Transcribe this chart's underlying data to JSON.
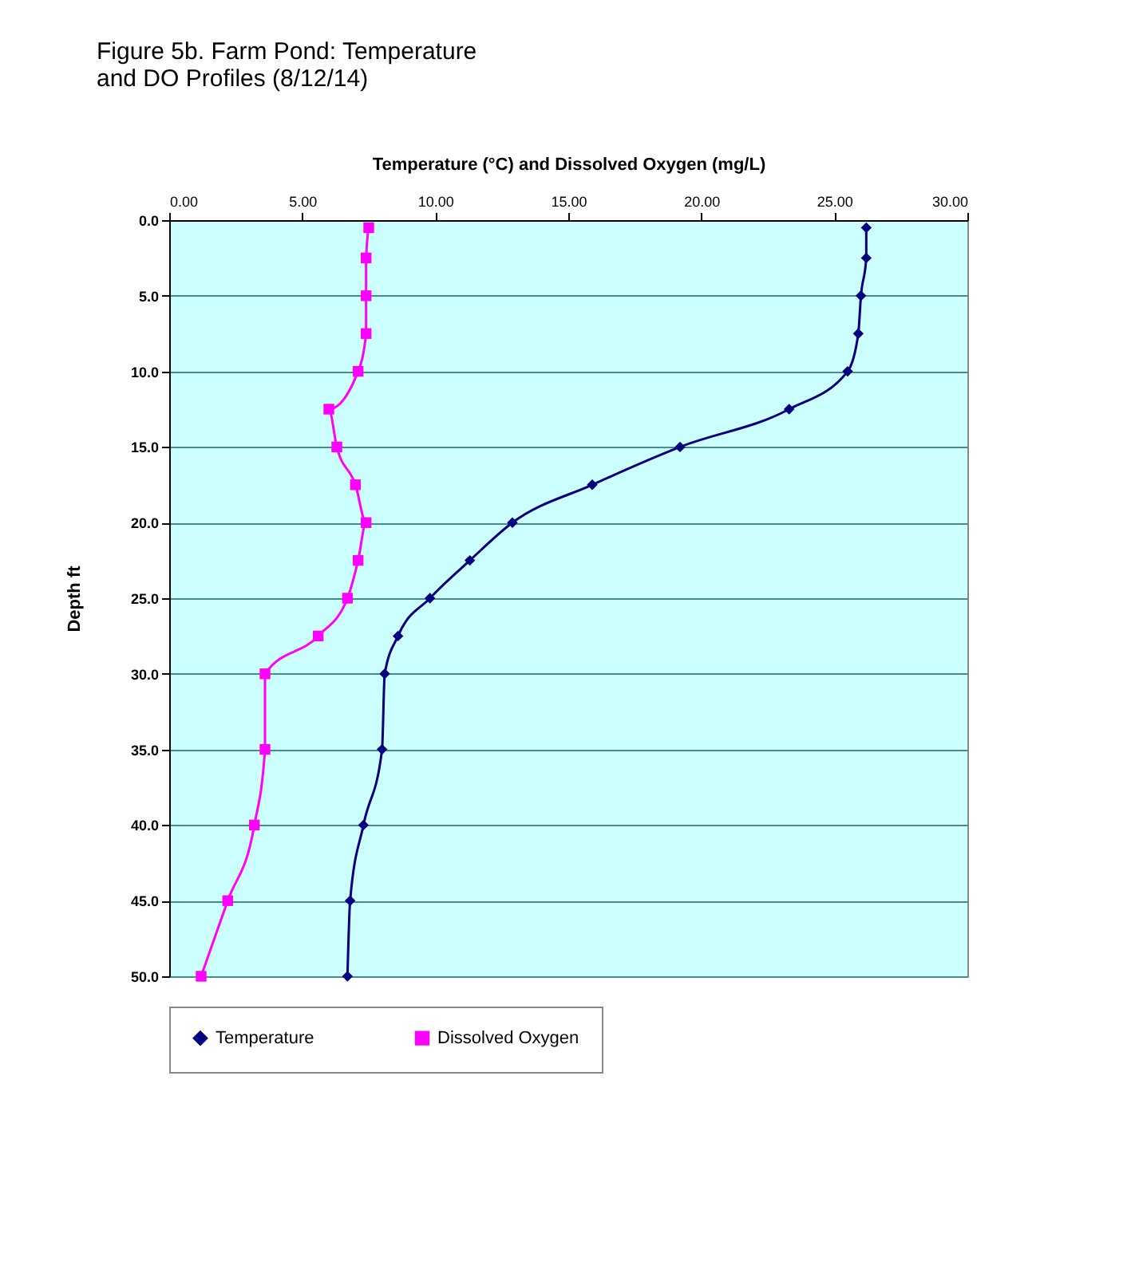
{
  "chart_data": {
    "type": "line",
    "orientation": "horizontal",
    "title": "Figure 5b. Farm Pond: Temperature\nand DO Profiles  (8/12/14)",
    "xlabel": "Temperature (°C) and Dissolved Oxygen (mg/L)",
    "ylabel": "Depth ft",
    "x": [
      0.5,
      2.5,
      5,
      7.5,
      10,
      12.5,
      15,
      17.5,
      20,
      22.5,
      25,
      27.5,
      30,
      35,
      40,
      45,
      50
    ],
    "series": [
      {
        "name": "Temperature",
        "color": "#000080",
        "marker": "diamond",
        "values": [
          26.2,
          26.2,
          26.0,
          25.9,
          25.5,
          23.3,
          19.2,
          15.9,
          12.9,
          11.3,
          9.8,
          8.6,
          8.1,
          8.0,
          7.3,
          6.8,
          6.7
        ]
      },
      {
        "name": "Dissolved Oxygen",
        "color": "#ff00ff",
        "marker": "square",
        "values": [
          7.5,
          7.4,
          7.4,
          7.4,
          7.1,
          6.0,
          6.3,
          7.0,
          7.4,
          7.1,
          6.7,
          5.6,
          3.6,
          3.6,
          3.2,
          2.2,
          1.2
        ]
      }
    ],
    "xlim": [
      0,
      30
    ],
    "xticks": [
      {
        "value": 0,
        "label": "0.00"
      },
      {
        "value": 5,
        "label": "5.00"
      },
      {
        "value": 10,
        "label": "10.00"
      },
      {
        "value": 15,
        "label": "15.00"
      },
      {
        "value": 20,
        "label": "20.00"
      },
      {
        "value": 25,
        "label": "25.00"
      },
      {
        "value": 30,
        "label": "30.00"
      }
    ],
    "ylim": [
      50,
      0
    ],
    "yticks": [
      {
        "value": 0,
        "label": "0.0"
      },
      {
        "value": 5,
        "label": "5.0"
      },
      {
        "value": 10,
        "label": "10.0"
      },
      {
        "value": 15,
        "label": "15.0"
      },
      {
        "value": 20,
        "label": "20.0"
      },
      {
        "value": 25,
        "label": "25.0"
      },
      {
        "value": 30,
        "label": "30.0"
      },
      {
        "value": 35,
        "label": "35.0"
      },
      {
        "value": 40,
        "label": "40.0"
      },
      {
        "value": 45,
        "label": "45.0"
      },
      {
        "value": 50,
        "label": "50.0"
      }
    ],
    "grid": "y",
    "legend": "bottom",
    "line_style": "solid"
  }
}
